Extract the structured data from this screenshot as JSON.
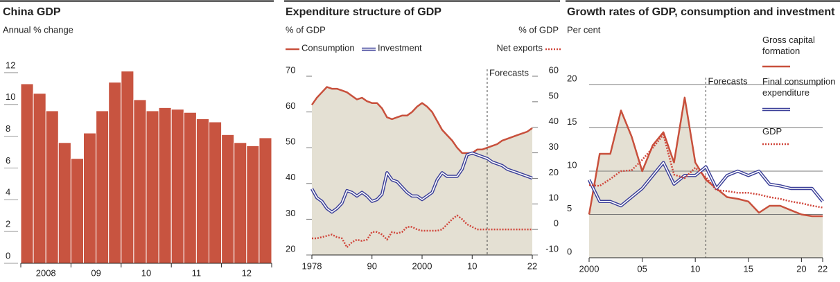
{
  "chart_data": [
    {
      "type": "bar",
      "title": "China GDP",
      "subtitle": "Annual % change",
      "color": "#c85440",
      "categories": [
        "2008",
        null,
        null,
        null,
        "09",
        null,
        null,
        null,
        "10",
        null,
        null,
        null,
        "11",
        null,
        null,
        null,
        "12",
        null,
        null,
        null
      ],
      "values": [
        11.3,
        10.7,
        9.6,
        7.6,
        6.6,
        8.2,
        9.6,
        11.4,
        12.1,
        10.3,
        9.6,
        9.8,
        9.7,
        9.5,
        9.1,
        8.9,
        8.1,
        7.6,
        7.4,
        7.9
      ],
      "ylim": [
        0,
        13
      ],
      "yticks": [
        0,
        2,
        4,
        6,
        8,
        10,
        12
      ],
      "grid": false
    },
    {
      "type": "line",
      "title": "Expenditure structure of GDP",
      "ylabel": "% of GDP",
      "y2label": "% of GDP",
      "annotation": {
        "text": "Forecasts",
        "x": 2013
      },
      "x": [
        1978,
        1979,
        1980,
        1981,
        1982,
        1983,
        1984,
        1985,
        1986,
        1987,
        1988,
        1989,
        1990,
        1991,
        1992,
        1993,
        1994,
        1995,
        1996,
        1997,
        1998,
        1999,
        2000,
        2001,
        2002,
        2003,
        2004,
        2005,
        2006,
        2007,
        2008,
        2009,
        2010,
        2011,
        2012,
        2013,
        2014,
        2015,
        2016,
        2017,
        2018,
        2019,
        2020,
        2021,
        2022
      ],
      "xlim": [
        1978,
        2022
      ],
      "xticks": [
        1978,
        {
          "value": 1990,
          "label": "90"
        },
        2000,
        {
          "value": 2010,
          "label": "10"
        },
        {
          "value": 2022,
          "label": "22"
        }
      ],
      "ylim": [
        20,
        70
      ],
      "yticks": [
        20,
        30,
        40,
        50,
        60,
        70
      ],
      "y2lim": [
        -10,
        60
      ],
      "y2ticks": [
        -10,
        0,
        10,
        20,
        30,
        40,
        50,
        60
      ],
      "series": [
        {
          "name": "Consumption",
          "color": "#c8503c",
          "style": "solid",
          "fill_color": "#e4e0d3",
          "axis": "y",
          "values": [
            62,
            64,
            65.5,
            67,
            66.5,
            66.5,
            66,
            65.5,
            64.5,
            63.5,
            64,
            63,
            62.5,
            62.5,
            61,
            58.5,
            58,
            58.5,
            59,
            59,
            60,
            61.5,
            62.5,
            61.5,
            60,
            57.5,
            55,
            53.5,
            52,
            50,
            48.5,
            48.5,
            48.5,
            49.5,
            49.5,
            50,
            50.5,
            51,
            52,
            52.5,
            53,
            53.5,
            54,
            54.5,
            55.5
          ]
        },
        {
          "name": "Investment",
          "color": "#3b3f98",
          "style": "double",
          "axis": "y",
          "values": [
            38.5,
            36,
            35,
            33,
            32,
            33,
            34.5,
            38,
            37.5,
            36.5,
            37.5,
            36.5,
            35,
            35.5,
            37,
            43,
            41,
            40.5,
            39,
            37.5,
            36.5,
            36.5,
            35.5,
            36.5,
            37.5,
            41,
            43,
            42,
            42,
            42,
            44,
            48,
            48.5,
            48,
            47.5,
            47,
            46,
            45.5,
            45,
            44,
            43.5,
            43,
            42.5,
            42,
            41.5
          ]
        },
        {
          "name": "Net exports",
          "color": "#d0453a",
          "style": "dotted",
          "axis": "y2",
          "values": [
            -3.5,
            -3.5,
            -3,
            -2.5,
            -2,
            -3,
            -3.5,
            -7,
            -5,
            -4,
            -4.5,
            -4,
            -1,
            -1,
            -2,
            -4,
            -1,
            -1.5,
            -1,
            1,
            1,
            0,
            -0.5,
            -0.5,
            -0.5,
            -0.5,
            0,
            2,
            4,
            5.5,
            4,
            2,
            1,
            0,
            0,
            0,
            0,
            0,
            0,
            0,
            0,
            0,
            0,
            0,
            0
          ]
        }
      ]
    },
    {
      "type": "line",
      "title": "Growth rates of GDP, consumption and investment",
      "ylabel": "Per cent",
      "annotation": {
        "text": "Forecasts",
        "x": 2011
      },
      "x": [
        2000,
        2001,
        2002,
        2003,
        2004,
        2005,
        2006,
        2007,
        2008,
        2009,
        2010,
        2011,
        2012,
        2013,
        2014,
        2015,
        2016,
        2017,
        2018,
        2019,
        2020,
        2021,
        2022
      ],
      "xlim": [
        2000,
        2022
      ],
      "xticks": [
        2000,
        {
          "value": 2005,
          "label": "05"
        },
        {
          "value": 2010,
          "label": "10"
        },
        {
          "value": 2015,
          "label": "15"
        },
        {
          "value": 2020,
          "label": "20"
        },
        {
          "value": 2022,
          "label": "22"
        }
      ],
      "ylim": [
        0,
        20
      ],
      "yticks": [
        0,
        5,
        10,
        15,
        20
      ],
      "grid": true,
      "series": [
        {
          "name": "Gross capital formation",
          "color": "#c8503c",
          "style": "solid",
          "fill_color": "#e4e0d3",
          "axis": "y",
          "values": [
            5,
            12,
            12,
            17,
            14,
            10,
            13,
            14.5,
            11,
            18.5,
            11,
            9,
            8,
            7,
            6.8,
            6.5,
            5.2,
            6,
            6,
            5.5,
            5,
            4.8,
            4.8
          ]
        },
        {
          "name": "Final consumption expenditure",
          "color": "#3b3f98",
          "style": "double",
          "axis": "y",
          "values": [
            9,
            6.5,
            6.5,
            6,
            7,
            8,
            9.5,
            11,
            8.5,
            9.5,
            9.5,
            10.5,
            8,
            9.5,
            10,
            9.5,
            10,
            8.5,
            8.3,
            8,
            8,
            8,
            6.5
          ]
        },
        {
          "name": "GDP",
          "color": "#d0453a",
          "style": "dotted",
          "axis": "y",
          "values": [
            8.4,
            8.3,
            9.1,
            10,
            10.1,
            11.3,
            12.7,
            14.2,
            9.6,
            9.2,
            10.4,
            9.3,
            7.8,
            7.7,
            7.5,
            7.5,
            7.3,
            7,
            6.8,
            6.5,
            6.3,
            6,
            5.8
          ]
        }
      ]
    }
  ]
}
